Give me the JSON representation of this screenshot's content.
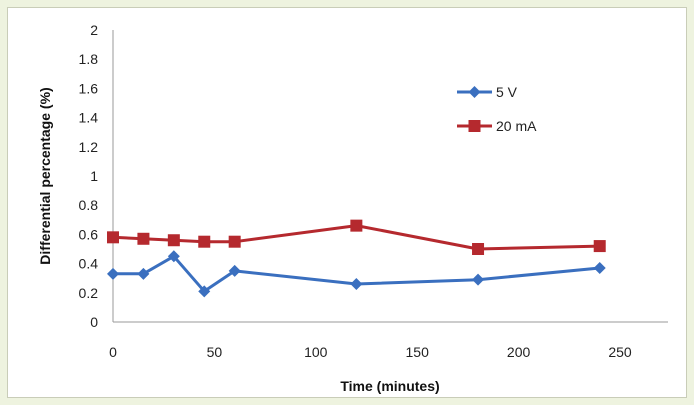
{
  "chart_data": {
    "type": "line",
    "title": "",
    "xlabel": "Time (minutes)",
    "ylabel": "Differential percentage (%)",
    "xlim": [
      0,
      250
    ],
    "ylim": [
      0,
      2
    ],
    "xticks": [
      0,
      50,
      100,
      150,
      200,
      250
    ],
    "yticks": [
      0,
      0.2,
      0.4,
      0.6,
      0.8,
      1,
      1.2,
      1.4,
      1.6,
      1.8,
      2
    ],
    "grid": false,
    "legend_position": "upper-right",
    "series": [
      {
        "name": "5 V",
        "color": "#3a6fbf",
        "marker": "diamond",
        "x": [
          0,
          15,
          30,
          45,
          60,
          120,
          180,
          240
        ],
        "y": [
          0.33,
          0.33,
          0.45,
          0.21,
          0.35,
          0.26,
          0.29,
          0.37
        ]
      },
      {
        "name": "20 mA",
        "color": "#b5292e",
        "marker": "square",
        "x": [
          0,
          15,
          30,
          45,
          60,
          120,
          180,
          240
        ],
        "y": [
          0.58,
          0.57,
          0.56,
          0.55,
          0.55,
          0.66,
          0.5,
          0.52
        ]
      }
    ]
  }
}
